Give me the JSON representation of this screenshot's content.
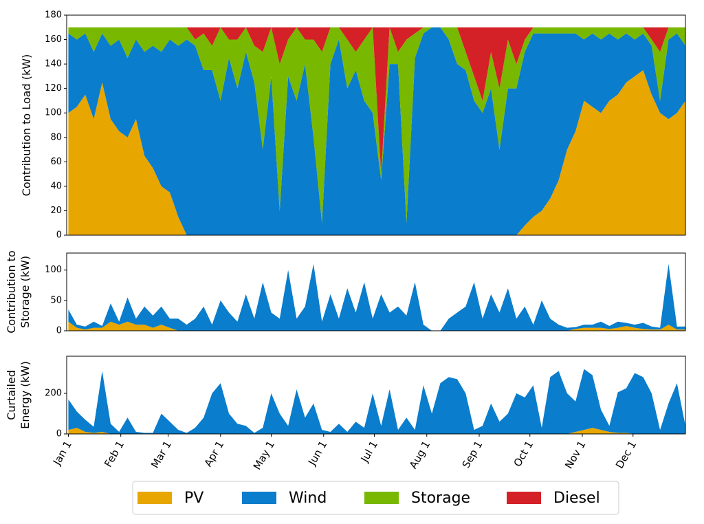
{
  "chart_data": [
    {
      "type": "area",
      "ylabel": "Contribution to Load (kW)",
      "legend": "bottom",
      "x": [
        0,
        5,
        10,
        15,
        20,
        25,
        30,
        35,
        40,
        45,
        50,
        55,
        60,
        65,
        70,
        75,
        80,
        85,
        90,
        95,
        100,
        105,
        110,
        115,
        120,
        125,
        130,
        135,
        140,
        145,
        150,
        155,
        160,
        165,
        170,
        175,
        180,
        185,
        190,
        195,
        200,
        205,
        210,
        215,
        220,
        225,
        230,
        235,
        240,
        245,
        250,
        255,
        260,
        265,
        270,
        275,
        280,
        285,
        290,
        295,
        300,
        305,
        310,
        315,
        320,
        325,
        330,
        335,
        340,
        345,
        350,
        355,
        360,
        365
      ],
      "xlim": [
        -1,
        365
      ],
      "ylim": [
        0,
        180
      ],
      "yticks": [
        0,
        20,
        40,
        60,
        80,
        100,
        120,
        140,
        160,
        180
      ],
      "series": [
        {
          "name": "PV",
          "color": "#e8a600",
          "values": [
            100,
            105,
            115,
            95,
            125,
            95,
            85,
            80,
            95,
            65,
            55,
            40,
            35,
            15,
            0,
            0,
            0,
            0,
            0,
            0,
            0,
            0,
            0,
            0,
            0,
            0,
            0,
            0,
            0,
            0,
            0,
            0,
            0,
            0,
            0,
            0,
            0,
            0,
            0,
            0,
            0,
            0,
            0,
            0,
            0,
            0,
            0,
            0,
            0,
            0,
            0,
            0,
            0,
            0,
            8,
            15,
            20,
            30,
            45,
            70,
            85,
            110,
            105,
            100,
            110,
            115,
            125,
            130,
            135,
            115,
            100,
            95,
            100,
            110
          ]
        },
        {
          "name": "Wind",
          "color": "#0a7dcc",
          "values": [
            65,
            55,
            50,
            55,
            40,
            60,
            75,
            65,
            65,
            85,
            100,
            110,
            125,
            140,
            160,
            155,
            135,
            135,
            110,
            145,
            120,
            150,
            125,
            70,
            130,
            20,
            130,
            110,
            140,
            80,
            10,
            140,
            160,
            120,
            135,
            110,
            100,
            45,
            140,
            140,
            10,
            145,
            165,
            170,
            170,
            160,
            140,
            135,
            110,
            100,
            120,
            70,
            120,
            120,
            142,
            150,
            145,
            135,
            120,
            95,
            80,
            50,
            60,
            60,
            55,
            45,
            40,
            30,
            30,
            40,
            10,
            65,
            65,
            45
          ]
        },
        {
          "name": "Storage",
          "color": "#78b800",
          "values": [
            5,
            10,
            5,
            20,
            5,
            15,
            10,
            25,
            10,
            20,
            15,
            20,
            10,
            15,
            10,
            5,
            30,
            20,
            60,
            15,
            40,
            20,
            30,
            80,
            40,
            120,
            30,
            60,
            20,
            80,
            140,
            30,
            10,
            40,
            15,
            50,
            70,
            5,
            30,
            10,
            150,
            20,
            5,
            0,
            0,
            10,
            30,
            15,
            20,
            10,
            30,
            50,
            40,
            20,
            10,
            5,
            5,
            5,
            5,
            5,
            5,
            10,
            5,
            10,
            5,
            10,
            5,
            10,
            5,
            5,
            40,
            10,
            5,
            15
          ]
        },
        {
          "name": "Diesel",
          "color": "#d42027",
          "values": [
            0,
            0,
            0,
            0,
            0,
            0,
            0,
            0,
            0,
            0,
            0,
            0,
            0,
            0,
            0,
            10,
            5,
            15,
            0,
            10,
            10,
            0,
            15,
            20,
            0,
            30,
            10,
            0,
            10,
            10,
            20,
            0,
            0,
            10,
            20,
            10,
            0,
            120,
            0,
            20,
            10,
            5,
            0,
            0,
            0,
            0,
            0,
            20,
            40,
            60,
            20,
            50,
            10,
            30,
            10,
            0,
            0,
            0,
            0,
            0,
            0,
            0,
            0,
            0,
            0,
            0,
            0,
            0,
            0,
            10,
            20,
            0,
            0,
            0
          ]
        }
      ]
    },
    {
      "type": "area",
      "ylabel": [
        "Contribution to",
        "Storage (kW)"
      ],
      "x": [
        0,
        5,
        10,
        15,
        20,
        25,
        30,
        35,
        40,
        45,
        50,
        55,
        60,
        65,
        70,
        75,
        80,
        85,
        90,
        95,
        100,
        105,
        110,
        115,
        120,
        125,
        130,
        135,
        140,
        145,
        150,
        155,
        160,
        165,
        170,
        175,
        180,
        185,
        190,
        195,
        200,
        205,
        210,
        215,
        220,
        225,
        230,
        235,
        240,
        245,
        250,
        255,
        260,
        265,
        270,
        275,
        280,
        285,
        290,
        295,
        300,
        305,
        310,
        315,
        320,
        325,
        330,
        335,
        340,
        345,
        350,
        355,
        360,
        365
      ],
      "xlim": [
        -1,
        365
      ],
      "ylim": [
        0,
        128
      ],
      "yticks": [
        0,
        50,
        100
      ],
      "series": [
        {
          "name": "PV",
          "color": "#e8a600",
          "values": [
            15,
            5,
            2,
            5,
            5,
            15,
            10,
            15,
            10,
            10,
            5,
            10,
            5,
            0,
            0,
            0,
            0,
            0,
            0,
            0,
            0,
            0,
            0,
            0,
            0,
            0,
            0,
            0,
            0,
            0,
            0,
            0,
            0,
            0,
            0,
            0,
            0,
            0,
            0,
            0,
            0,
            0,
            0,
            0,
            0,
            0,
            0,
            0,
            0,
            0,
            0,
            0,
            0,
            0,
            0,
            0,
            0,
            0,
            0,
            0,
            3,
            5,
            5,
            5,
            3,
            5,
            8,
            5,
            3,
            2,
            2,
            10,
            2,
            2
          ]
        },
        {
          "name": "Wind",
          "color": "#0a7dcc",
          "values": [
            20,
            5,
            5,
            10,
            3,
            30,
            5,
            40,
            10,
            30,
            20,
            30,
            15,
            20,
            10,
            20,
            40,
            10,
            50,
            30,
            15,
            60,
            20,
            80,
            30,
            20,
            100,
            20,
            40,
            110,
            15,
            60,
            20,
            70,
            30,
            80,
            20,
            60,
            30,
            40,
            25,
            80,
            10,
            0,
            0,
            20,
            30,
            40,
            80,
            20,
            60,
            30,
            70,
            20,
            40,
            10,
            50,
            20,
            10,
            5,
            3,
            5,
            5,
            10,
            5,
            10,
            5,
            5,
            10,
            5,
            3,
            100,
            5,
            5
          ]
        }
      ]
    },
    {
      "type": "area",
      "ylabel": [
        "Curtailed",
        "Energy (kW)"
      ],
      "x": [
        0,
        5,
        10,
        15,
        20,
        25,
        30,
        35,
        40,
        45,
        50,
        55,
        60,
        65,
        70,
        75,
        80,
        85,
        90,
        95,
        100,
        105,
        110,
        115,
        120,
        125,
        130,
        135,
        140,
        145,
        150,
        155,
        160,
        165,
        170,
        175,
        180,
        185,
        190,
        195,
        200,
        205,
        210,
        215,
        220,
        225,
        230,
        235,
        240,
        245,
        250,
        255,
        260,
        265,
        270,
        275,
        280,
        285,
        290,
        295,
        300,
        305,
        310,
        315,
        320,
        325,
        330,
        335,
        340,
        345,
        350,
        355,
        360,
        365
      ],
      "xlim": [
        -1,
        365
      ],
      "ylim": [
        0,
        383
      ],
      "yticks": [
        0,
        200
      ],
      "xticks": [
        {
          "value": 0,
          "label": "Jan 1"
        },
        {
          "value": 31,
          "label": "Feb 1"
        },
        {
          "value": 59,
          "label": "Mar 1"
        },
        {
          "value": 90,
          "label": "Apr 1"
        },
        {
          "value": 120,
          "label": "May 1"
        },
        {
          "value": 151,
          "label": "Jun 1"
        },
        {
          "value": 181,
          "label": "Jul 1"
        },
        {
          "value": 212,
          "label": "Aug 1"
        },
        {
          "value": 243,
          "label": "Sep 1"
        },
        {
          "value": 273,
          "label": "Oct 1"
        },
        {
          "value": 304,
          "label": "Nov 1"
        },
        {
          "value": 334,
          "label": "Dec 1"
        }
      ],
      "series": [
        {
          "name": "PV",
          "color": "#e8a600",
          "values": [
            20,
            30,
            10,
            5,
            10,
            0,
            0,
            0,
            0,
            0,
            0,
            0,
            0,
            0,
            0,
            0,
            0,
            0,
            0,
            0,
            0,
            0,
            0,
            0,
            0,
            0,
            0,
            0,
            0,
            0,
            0,
            0,
            0,
            0,
            0,
            0,
            0,
            0,
            0,
            0,
            0,
            0,
            0,
            0,
            0,
            0,
            0,
            0,
            0,
            0,
            0,
            0,
            0,
            0,
            0,
            0,
            0,
            0,
            0,
            0,
            10,
            20,
            30,
            20,
            10,
            5,
            5,
            0,
            0,
            0,
            0,
            0,
            0,
            0
          ]
        },
        {
          "name": "Wind",
          "color": "#0a7dcc",
          "values": [
            150,
            80,
            60,
            30,
            300,
            50,
            10,
            80,
            10,
            5,
            5,
            100,
            60,
            20,
            5,
            30,
            80,
            200,
            250,
            100,
            50,
            40,
            5,
            30,
            200,
            100,
            40,
            220,
            80,
            150,
            20,
            10,
            50,
            10,
            60,
            30,
            200,
            40,
            220,
            20,
            80,
            20,
            240,
            100,
            250,
            280,
            270,
            200,
            20,
            40,
            150,
            60,
            100,
            200,
            180,
            240,
            30,
            280,
            310,
            200,
            150,
            300,
            260,
            100,
            30,
            200,
            220,
            300,
            280,
            200,
            20,
            150,
            250,
            40
          ]
        }
      ]
    }
  ]
}
